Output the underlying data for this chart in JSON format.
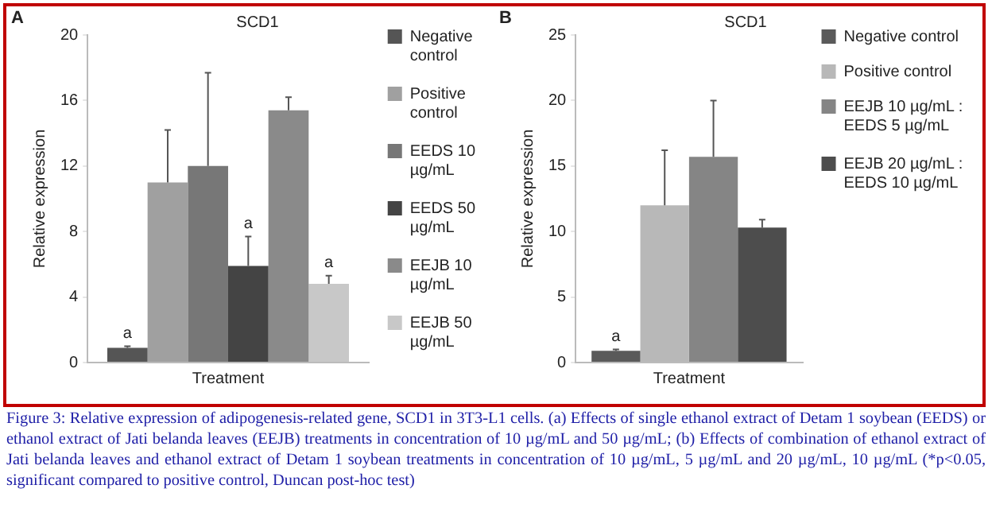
{
  "chart_data": [
    {
      "type": "bar",
      "title": "SCD1",
      "xlabel": "Treatment",
      "ylabel": "Relative expression",
      "categories": [
        null
      ],
      "series": [
        {
          "name": "Negative control",
          "color": "#555555",
          "values": [
            0.9
          ],
          "errors": [
            [
              0.9,
              1.0
            ]
          ]
        },
        {
          "name": "Positive control",
          "color": "#a0a0a0",
          "values": [
            11
          ],
          "errors": [
            [
              11,
              14.2
            ]
          ]
        },
        {
          "name": "EEDS 10 µg/mL",
          "color": "#777777",
          "values": [
            12
          ],
          "errors": [
            [
              12,
              17.7
            ]
          ]
        },
        {
          "name": "EEDS 50 µg/mL",
          "color": "#444444",
          "values": [
            5.9
          ],
          "errors": [
            [
              5.9,
              7.7
            ]
          ]
        },
        {
          "name": "EEJB 10 µg/mL",
          "color": "#8a8a8a",
          "values": [
            15.4
          ],
          "errors": [
            [
              15.4,
              16.2
            ]
          ]
        },
        {
          "name": "EEJB 50 µg/mL",
          "color": "#c8c8c8",
          "values": [
            4.8
          ],
          "errors": [
            [
              4.8,
              5.3
            ]
          ]
        }
      ],
      "ylim": [
        0,
        20
      ],
      "yticks": [
        0,
        4,
        8,
        12,
        16,
        20
      ],
      "grid": false,
      "legend": "right",
      "tick_labels": "y",
      "annotations": [
        "A",
        {
          "text": "a",
          "y": 1.0
        },
        {
          "text": "a",
          "y": 7.7
        },
        {
          "text": "a",
          "y": 5.3
        }
      ]
    },
    {
      "type": "bar",
      "title": "SCD1",
      "xlabel": "Treatment",
      "ylabel": "Relative expression",
      "categories": [
        null
      ],
      "series": [
        {
          "name": "Negative control",
          "color": "#5a5a5a",
          "values": [
            0.9
          ],
          "errors": [
            [
              0.9,
              1.0
            ]
          ]
        },
        {
          "name": "Positive control",
          "color": "#b8b8b8",
          "values": [
            12.0
          ],
          "errors": [
            [
              12.0,
              16.2
            ]
          ]
        },
        {
          "name": "EEJB 10 µg/mL : EEDS 5 µg/mL",
          "color": "#858585",
          "values": [
            15.7
          ],
          "errors": [
            [
              15.7,
              20.0
            ]
          ]
        },
        {
          "name": "EEJB 20 µg/mL : EEDS 10 µg/mL",
          "color": "#4d4d4d",
          "values": [
            10.3
          ],
          "errors": [
            [
              10.3,
              10.9
            ]
          ]
        }
      ],
      "ylim": [
        0,
        25
      ],
      "yticks": [
        0,
        5,
        10,
        15,
        20,
        25
      ],
      "grid": false,
      "legend": "right",
      "tick_labels": "y",
      "annotations": [
        "B",
        {
          "text": "a",
          "y": 1.0
        },
        "Figure 3: Relative expression of adipogenesis-related gene, SCD1 in 3T3-L1 cells. (a) Effects of single ethanol extract of Detam 1 soybean (EEDS) or  ethanol extract of Jati belanda leaves (EEJB) treatments in concentration of 10 µg/mL and 50 µg/mL; (b) Effects of combination of  ethanol extract of Jati belanda leaves and ethanol extract of Detam 1 soybean treatments in concentration of 10 µg/mL, 5 µg/mL and 20 µg/mL, 10 µg/mL (*p<0.05, significant compared to positive control, Duncan post-hoc test)"
      ]
    }
  ]
}
